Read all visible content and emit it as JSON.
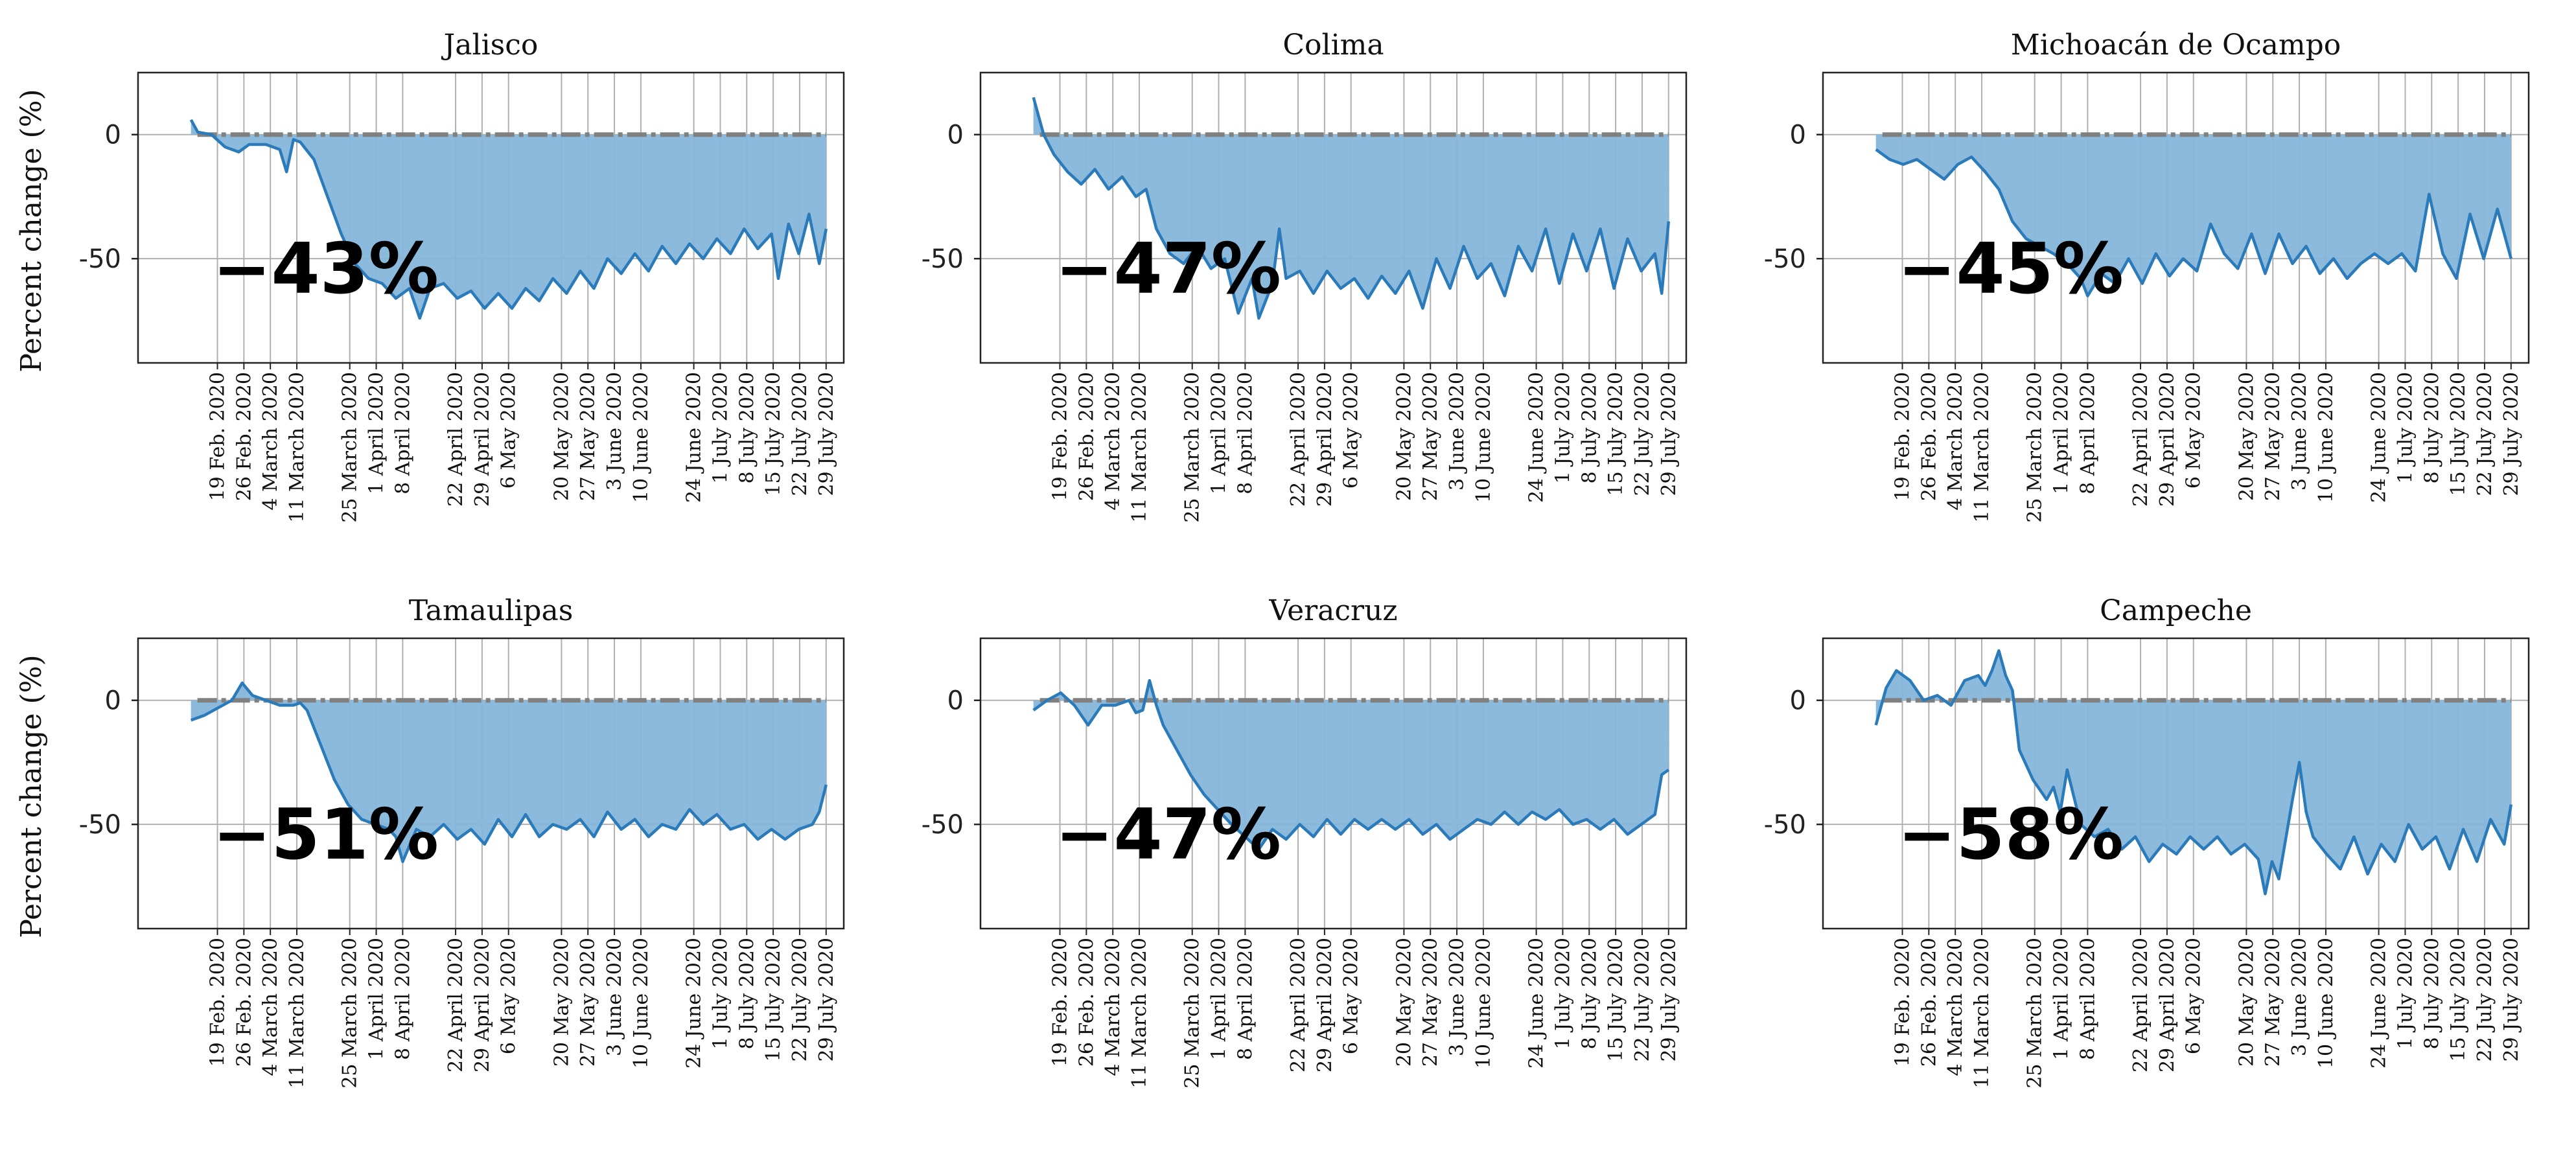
{
  "chart_data": [
    {
      "type": "area",
      "title": "Jalisco",
      "ylabel": "Percent change (%)",
      "yticks": [
        0,
        -50
      ],
      "ylim": [
        -92,
        25
      ],
      "annotation": "−43%",
      "x_start_day": 0,
      "keyframes": [
        [
          0,
          6
        ],
        [
          2,
          1
        ],
        [
          6,
          0
        ],
        [
          10,
          -5
        ],
        [
          14,
          -7
        ],
        [
          17,
          -4
        ],
        [
          22,
          -4
        ],
        [
          26,
          -6
        ],
        [
          28,
          -15
        ],
        [
          30,
          -2
        ],
        [
          32,
          -3
        ],
        [
          36,
          -10
        ],
        [
          40,
          -25
        ],
        [
          44,
          -40
        ],
        [
          48,
          -52
        ],
        [
          52,
          -58
        ],
        [
          56,
          -60
        ],
        [
          60,
          -66
        ],
        [
          64,
          -62
        ],
        [
          67,
          -74
        ],
        [
          70,
          -62
        ],
        [
          74,
          -60
        ],
        [
          78,
          -66
        ],
        [
          82,
          -63
        ],
        [
          86,
          -70
        ],
        [
          90,
          -64
        ],
        [
          94,
          -70
        ],
        [
          98,
          -62
        ],
        [
          102,
          -67
        ],
        [
          106,
          -58
        ],
        [
          110,
          -64
        ],
        [
          114,
          -55
        ],
        [
          118,
          -62
        ],
        [
          122,
          -50
        ],
        [
          126,
          -56
        ],
        [
          130,
          -48
        ],
        [
          134,
          -55
        ],
        [
          138,
          -45
        ],
        [
          142,
          -52
        ],
        [
          146,
          -44
        ],
        [
          150,
          -50
        ],
        [
          154,
          -42
        ],
        [
          158,
          -48
        ],
        [
          162,
          -38
        ],
        [
          166,
          -46
        ],
        [
          170,
          -40
        ],
        [
          172,
          -58
        ],
        [
          175,
          -36
        ],
        [
          178,
          -48
        ],
        [
          181,
          -32
        ],
        [
          184,
          -52
        ],
        [
          186,
          -38
        ]
      ],
      "x_categories": [
        "19 Feb. 2020",
        "26 Feb. 2020",
        "4 March 2020",
        "11 March 2020",
        "25 March 2020",
        "1 April 2020",
        "8 April 2020",
        "22 April 2020",
        "29 April 2020",
        "6 May 2020",
        "20 May 2020",
        "27 May 2020",
        "3 June 2020",
        "10 June 2020",
        "24 June 2020",
        "1 July 2020",
        "8 July 2020",
        "15 July 2020",
        "22 July 2020",
        "29 July 2020"
      ]
    },
    {
      "type": "area",
      "title": "Colima",
      "ylabel": "",
      "yticks": [
        0,
        -50
      ],
      "ylim": [
        -92,
        25
      ],
      "annotation": "−47%",
      "x_start_day": 0,
      "keyframes": [
        [
          0,
          15
        ],
        [
          3,
          0
        ],
        [
          6,
          -8
        ],
        [
          10,
          -15
        ],
        [
          14,
          -20
        ],
        [
          18,
          -14
        ],
        [
          22,
          -22
        ],
        [
          26,
          -17
        ],
        [
          30,
          -25
        ],
        [
          33,
          -22
        ],
        [
          36,
          -38
        ],
        [
          40,
          -48
        ],
        [
          44,
          -52
        ],
        [
          48,
          -45
        ],
        [
          52,
          -54
        ],
        [
          56,
          -50
        ],
        [
          60,
          -72
        ],
        [
          64,
          -58
        ],
        [
          66,
          -74
        ],
        [
          70,
          -60
        ],
        [
          72,
          -38
        ],
        [
          74,
          -58
        ],
        [
          78,
          -55
        ],
        [
          82,
          -64
        ],
        [
          86,
          -55
        ],
        [
          90,
          -62
        ],
        [
          94,
          -58
        ],
        [
          98,
          -66
        ],
        [
          102,
          -57
        ],
        [
          106,
          -64
        ],
        [
          110,
          -55
        ],
        [
          114,
          -70
        ],
        [
          118,
          -50
        ],
        [
          122,
          -62
        ],
        [
          126,
          -45
        ],
        [
          130,
          -58
        ],
        [
          134,
          -52
        ],
        [
          138,
          -65
        ],
        [
          142,
          -45
        ],
        [
          146,
          -55
        ],
        [
          150,
          -38
        ],
        [
          154,
          -60
        ],
        [
          158,
          -40
        ],
        [
          162,
          -55
        ],
        [
          166,
          -38
        ],
        [
          170,
          -62
        ],
        [
          174,
          -42
        ],
        [
          178,
          -55
        ],
        [
          182,
          -48
        ],
        [
          184,
          -64
        ],
        [
          186,
          -35
        ]
      ],
      "x_categories": [
        "19 Feb. 2020",
        "26 Feb. 2020",
        "4 March 2020",
        "11 March 2020",
        "25 March 2020",
        "1 April 2020",
        "8 April 2020",
        "22 April 2020",
        "29 April 2020",
        "6 May 2020",
        "20 May 2020",
        "27 May 2020",
        "3 June 2020",
        "10 June 2020",
        "24 June 2020",
        "1 July 2020",
        "8 July 2020",
        "15 July 2020",
        "22 July 2020",
        "29 July 2020"
      ]
    },
    {
      "type": "area",
      "title": "Michoacán de Ocampo",
      "ylabel": "",
      "yticks": [
        0,
        -50
      ],
      "ylim": [
        -92,
        25
      ],
      "annotation": "−45%",
      "x_start_day": 0,
      "keyframes": [
        [
          0,
          -6
        ],
        [
          4,
          -10
        ],
        [
          8,
          -12
        ],
        [
          12,
          -10
        ],
        [
          16,
          -14
        ],
        [
          20,
          -18
        ],
        [
          24,
          -12
        ],
        [
          28,
          -9
        ],
        [
          32,
          -15
        ],
        [
          36,
          -22
        ],
        [
          40,
          -35
        ],
        [
          44,
          -42
        ],
        [
          48,
          -45
        ],
        [
          52,
          -48
        ],
        [
          56,
          -52
        ],
        [
          60,
          -58
        ],
        [
          62,
          -65
        ],
        [
          66,
          -56
        ],
        [
          70,
          -60
        ],
        [
          74,
          -50
        ],
        [
          78,
          -60
        ],
        [
          82,
          -48
        ],
        [
          86,
          -57
        ],
        [
          90,
          -50
        ],
        [
          94,
          -55
        ],
        [
          98,
          -36
        ],
        [
          102,
          -48
        ],
        [
          106,
          -54
        ],
        [
          110,
          -40
        ],
        [
          114,
          -56
        ],
        [
          118,
          -40
        ],
        [
          122,
          -52
        ],
        [
          126,
          -45
        ],
        [
          130,
          -56
        ],
        [
          134,
          -50
        ],
        [
          138,
          -58
        ],
        [
          142,
          -52
        ],
        [
          146,
          -48
        ],
        [
          150,
          -52
        ],
        [
          154,
          -48
        ],
        [
          158,
          -55
        ],
        [
          162,
          -24
        ],
        [
          166,
          -48
        ],
        [
          170,
          -58
        ],
        [
          174,
          -32
        ],
        [
          178,
          -50
        ],
        [
          182,
          -30
        ],
        [
          186,
          -50
        ]
      ],
      "x_categories": [
        "19 Feb. 2020",
        "26 Feb. 2020",
        "4 March 2020",
        "11 March 2020",
        "25 March 2020",
        "1 April 2020",
        "8 April 2020",
        "22 April 2020",
        "29 April 2020",
        "6 May 2020",
        "20 May 2020",
        "27 May 2020",
        "3 June 2020",
        "10 June 2020",
        "24 June 2020",
        "1 July 2020",
        "8 July 2020",
        "15 July 2020",
        "22 July 2020",
        "29 July 2020"
      ]
    },
    {
      "type": "area",
      "title": "Tamaulipas",
      "ylabel": "Percent change (%)",
      "yticks": [
        0,
        -50
      ],
      "ylim": [
        -92,
        25
      ],
      "annotation": "−51%",
      "x_start_day": 0,
      "keyframes": [
        [
          0,
          -8
        ],
        [
          4,
          -6
        ],
        [
          8,
          -3
        ],
        [
          12,
          0
        ],
        [
          15,
          7
        ],
        [
          18,
          2
        ],
        [
          22,
          0
        ],
        [
          26,
          -2
        ],
        [
          30,
          -2
        ],
        [
          32,
          -1
        ],
        [
          34,
          -4
        ],
        [
          38,
          -18
        ],
        [
          42,
          -32
        ],
        [
          46,
          -42
        ],
        [
          50,
          -48
        ],
        [
          54,
          -50
        ],
        [
          58,
          -52
        ],
        [
          60,
          -55
        ],
        [
          62,
          -65
        ],
        [
          66,
          -52
        ],
        [
          70,
          -55
        ],
        [
          74,
          -50
        ],
        [
          78,
          -56
        ],
        [
          82,
          -52
        ],
        [
          86,
          -58
        ],
        [
          90,
          -48
        ],
        [
          94,
          -55
        ],
        [
          98,
          -46
        ],
        [
          102,
          -55
        ],
        [
          106,
          -50
        ],
        [
          110,
          -52
        ],
        [
          114,
          -48
        ],
        [
          118,
          -55
        ],
        [
          122,
          -45
        ],
        [
          126,
          -52
        ],
        [
          130,
          -48
        ],
        [
          134,
          -55
        ],
        [
          138,
          -50
        ],
        [
          142,
          -52
        ],
        [
          146,
          -44
        ],
        [
          150,
          -50
        ],
        [
          154,
          -46
        ],
        [
          158,
          -52
        ],
        [
          162,
          -50
        ],
        [
          166,
          -56
        ],
        [
          170,
          -52
        ],
        [
          174,
          -56
        ],
        [
          178,
          -52
        ],
        [
          182,
          -50
        ],
        [
          184,
          -45
        ],
        [
          186,
          -34
        ]
      ],
      "x_categories": [
        "19 Feb. 2020",
        "26 Feb. 2020",
        "4 March 2020",
        "11 March 2020",
        "25 March 2020",
        "1 April 2020",
        "8 April 2020",
        "22 April 2020",
        "29 April 2020",
        "6 May 2020",
        "20 May 2020",
        "27 May 2020",
        "3 June 2020",
        "10 June 2020",
        "24 June 2020",
        "1 July 2020",
        "8 July 2020",
        "15 July 2020",
        "22 July 2020",
        "29 July 2020"
      ]
    },
    {
      "type": "area",
      "title": "Veracruz",
      "ylabel": "",
      "yticks": [
        0,
        -50
      ],
      "ylim": [
        -92,
        25
      ],
      "annotation": "−47%",
      "x_start_day": 0,
      "keyframes": [
        [
          0,
          -4
        ],
        [
          4,
          0
        ],
        [
          8,
          3
        ],
        [
          12,
          -2
        ],
        [
          16,
          -10
        ],
        [
          20,
          -2
        ],
        [
          24,
          -2
        ],
        [
          28,
          0
        ],
        [
          30,
          -5
        ],
        [
          32,
          -4
        ],
        [
          34,
          8
        ],
        [
          36,
          -2
        ],
        [
          38,
          -10
        ],
        [
          42,
          -20
        ],
        [
          46,
          -30
        ],
        [
          50,
          -38
        ],
        [
          54,
          -44
        ],
        [
          58,
          -50
        ],
        [
          62,
          -55
        ],
        [
          66,
          -60
        ],
        [
          70,
          -52
        ],
        [
          74,
          -56
        ],
        [
          78,
          -50
        ],
        [
          82,
          -55
        ],
        [
          86,
          -48
        ],
        [
          90,
          -54
        ],
        [
          94,
          -48
        ],
        [
          98,
          -52
        ],
        [
          102,
          -48
        ],
        [
          106,
          -52
        ],
        [
          110,
          -48
        ],
        [
          114,
          -54
        ],
        [
          118,
          -50
        ],
        [
          122,
          -56
        ],
        [
          126,
          -52
        ],
        [
          130,
          -48
        ],
        [
          134,
          -50
        ],
        [
          138,
          -45
        ],
        [
          142,
          -50
        ],
        [
          146,
          -45
        ],
        [
          150,
          -48
        ],
        [
          154,
          -44
        ],
        [
          158,
          -50
        ],
        [
          162,
          -48
        ],
        [
          166,
          -52
        ],
        [
          170,
          -48
        ],
        [
          174,
          -54
        ],
        [
          178,
          -50
        ],
        [
          182,
          -46
        ],
        [
          184,
          -30
        ],
        [
          186,
          -28
        ]
      ],
      "x_categories": [
        "19 Feb. 2020",
        "26 Feb. 2020",
        "4 March 2020",
        "11 March 2020",
        "25 March 2020",
        "1 April 2020",
        "8 April 2020",
        "22 April 2020",
        "29 April 2020",
        "6 May 2020",
        "20 May 2020",
        "27 May 2020",
        "3 June 2020",
        "10 June 2020",
        "24 June 2020",
        "1 July 2020",
        "8 July 2020",
        "15 July 2020",
        "22 July 2020",
        "29 July 2020"
      ]
    },
    {
      "type": "area",
      "title": "Campeche",
      "ylabel": "",
      "yticks": [
        0,
        -50
      ],
      "ylim": [
        -92,
        25
      ],
      "annotation": "−58%",
      "x_start_day": 0,
      "keyframes": [
        [
          0,
          -10
        ],
        [
          3,
          5
        ],
        [
          6,
          12
        ],
        [
          10,
          8
        ],
        [
          14,
          0
        ],
        [
          18,
          2
        ],
        [
          22,
          -2
        ],
        [
          26,
          8
        ],
        [
          30,
          10
        ],
        [
          32,
          6
        ],
        [
          34,
          12
        ],
        [
          36,
          20
        ],
        [
          38,
          10
        ],
        [
          40,
          4
        ],
        [
          42,
          -20
        ],
        [
          46,
          -32
        ],
        [
          50,
          -40
        ],
        [
          52,
          -35
        ],
        [
          54,
          -45
        ],
        [
          56,
          -28
        ],
        [
          60,
          -50
        ],
        [
          64,
          -55
        ],
        [
          68,
          -52
        ],
        [
          72,
          -60
        ],
        [
          76,
          -55
        ],
        [
          80,
          -65
        ],
        [
          84,
          -58
        ],
        [
          88,
          -62
        ],
        [
          92,
          -55
        ],
        [
          96,
          -60
        ],
        [
          100,
          -55
        ],
        [
          104,
          -62
        ],
        [
          108,
          -58
        ],
        [
          112,
          -64
        ],
        [
          114,
          -78
        ],
        [
          116,
          -65
        ],
        [
          118,
          -72
        ],
        [
          122,
          -40
        ],
        [
          124,
          -25
        ],
        [
          126,
          -45
        ],
        [
          128,
          -55
        ],
        [
          132,
          -62
        ],
        [
          136,
          -68
        ],
        [
          140,
          -55
        ],
        [
          144,
          -70
        ],
        [
          148,
          -58
        ],
        [
          152,
          -65
        ],
        [
          156,
          -50
        ],
        [
          160,
          -60
        ],
        [
          164,
          -55
        ],
        [
          168,
          -68
        ],
        [
          172,
          -52
        ],
        [
          176,
          -65
        ],
        [
          180,
          -48
        ],
        [
          184,
          -58
        ],
        [
          186,
          -42
        ]
      ],
      "x_categories": [
        "19 Feb. 2020",
        "26 Feb. 2020",
        "4 March 2020",
        "11 March 2020",
        "25 March 2020",
        "1 April 2020",
        "8 April 2020",
        "22 April 2020",
        "29 April 2020",
        "6 May 2020",
        "20 May 2020",
        "27 May 2020",
        "3 June 2020",
        "10 June 2020",
        "24 June 2020",
        "1 July 2020",
        "8 July 2020",
        "15 July 2020",
        "22 July 2020",
        "29 July 2020"
      ]
    }
  ]
}
